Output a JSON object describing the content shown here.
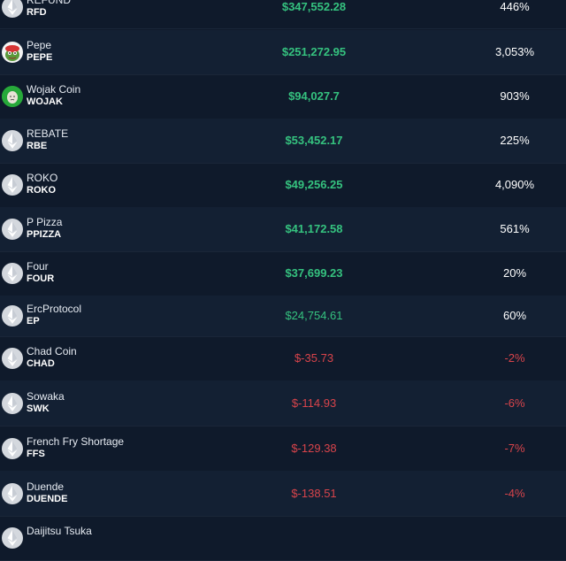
{
  "rows": [
    {
      "name": "REFUND",
      "symbol": "RFD",
      "value": "$347,552.28",
      "change": "446%",
      "trend": "pos",
      "icon": "ethereum-icon"
    },
    {
      "name": "Pepe",
      "symbol": "PEPE",
      "value": "$251,272.95",
      "change": "3,053%",
      "trend": "pos",
      "icon": "pepe-frog-icon"
    },
    {
      "name": "Wojak Coin",
      "symbol": "WOJAK",
      "value": "$94,027.7",
      "change": "903%",
      "trend": "pos",
      "icon": "wojak-face-icon"
    },
    {
      "name": "REBATE",
      "symbol": "RBE",
      "value": "$53,452.17",
      "change": "225%",
      "trend": "pos",
      "icon": "ethereum-icon"
    },
    {
      "name": "ROKO",
      "symbol": "ROKO",
      "value": "$49,256.25",
      "change": "4,090%",
      "trend": "pos",
      "icon": "ethereum-icon"
    },
    {
      "name": "P Pizza",
      "symbol": "PPIZZA",
      "value": "$41,172.58",
      "change": "561%",
      "trend": "pos",
      "icon": "ethereum-icon"
    },
    {
      "name": "Four",
      "symbol": "FOUR",
      "value": "$37,699.23",
      "change": "20%",
      "trend": "pos",
      "icon": "ethereum-icon"
    },
    {
      "name": "ErcProtocol",
      "symbol": "EP",
      "value": "$24,754.61",
      "change": "60%",
      "trend": "pos",
      "icon": "ethereum-icon"
    },
    {
      "name": "Chad Coin",
      "symbol": "CHAD",
      "value": "$-35.73",
      "change": "-2%",
      "trend": "neg",
      "icon": "ethereum-icon"
    },
    {
      "name": "Sowaka",
      "symbol": "SWK",
      "value": "$-114.93",
      "change": "-6%",
      "trend": "neg",
      "icon": "ethereum-icon"
    },
    {
      "name": "French Fry Shortage",
      "symbol": "FFS",
      "value": "$-129.38",
      "change": "-7%",
      "trend": "neg",
      "icon": "ethereum-icon"
    },
    {
      "name": "Duende",
      "symbol": "DUENDE",
      "value": "$-138.51",
      "change": "-4%",
      "trend": "neg",
      "icon": "ethereum-icon"
    },
    {
      "name": "Daijitsu Tsuka",
      "symbol": "",
      "value": "",
      "change": "",
      "trend": "pos",
      "icon": "ethereum-icon"
    }
  ],
  "colors": {
    "positive": "#35c27f",
    "negative": "#d8444b",
    "background": "#0f1a2b"
  }
}
